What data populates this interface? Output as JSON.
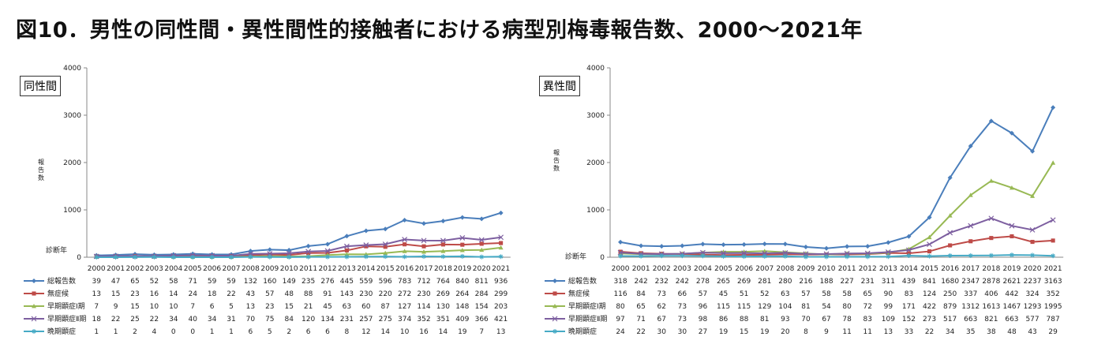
{
  "page_title": "図10．男性の同性間・異性間性的接触者における病型別梅毒報告数、2000〜2021年",
  "chart_data": [
    {
      "type": "line",
      "panel_label": "同性間",
      "ylabel": "報告数",
      "xlabel": "診断年",
      "ylim": [
        0,
        4000
      ],
      "yticks": [
        0,
        1000,
        2000,
        3000,
        4000
      ],
      "categories": [
        "2000",
        "2001",
        "2002",
        "2003",
        "2004",
        "2005",
        "2006",
        "2007",
        "2008",
        "2009",
        "2010",
        "2011",
        "2012",
        "2013",
        "2014",
        "2015",
        "2016",
        "2017",
        "2018",
        "2019",
        "2020",
        "2021"
      ],
      "series": [
        {
          "name": "総報告数",
          "color": "#4A7EBB",
          "marker": "diamond",
          "values": [
            39,
            47,
            65,
            52,
            58,
            71,
            59,
            59,
            132,
            160,
            149,
            235,
            276,
            445,
            559,
            596,
            783,
            712,
            764,
            840,
            811,
            936
          ]
        },
        {
          "name": "無症候",
          "color": "#BE4B48",
          "marker": "square",
          "values": [
            13,
            15,
            23,
            16,
            14,
            24,
            18,
            22,
            43,
            57,
            48,
            88,
            91,
            143,
            230,
            220,
            272,
            230,
            269,
            264,
            284,
            299
          ]
        },
        {
          "name": "早期顕症Ⅰ期",
          "color": "#98B954",
          "marker": "triangle",
          "values": [
            7,
            9,
            15,
            10,
            10,
            7,
            6,
            5,
            13,
            23,
            15,
            21,
            45,
            63,
            60,
            87,
            127,
            114,
            130,
            148,
            154,
            203
          ]
        },
        {
          "name": "早期顕症Ⅱ期",
          "color": "#7D5FA0",
          "marker": "x",
          "values": [
            18,
            22,
            25,
            22,
            34,
            40,
            34,
            31,
            70,
            75,
            84,
            120,
            134,
            231,
            257,
            275,
            374,
            352,
            351,
            409,
            366,
            421
          ]
        },
        {
          "name": "晩期顕症",
          "color": "#46AAC5",
          "marker": "star",
          "values": [
            1,
            1,
            2,
            4,
            0,
            0,
            1,
            1,
            6,
            5,
            2,
            6,
            6,
            8,
            12,
            14,
            10,
            16,
            14,
            19,
            7,
            13
          ]
        }
      ]
    },
    {
      "type": "line",
      "panel_label": "異性間",
      "ylabel": "報告数",
      "xlabel": "診断年",
      "ylim": [
        0,
        4000
      ],
      "yticks": [
        0,
        1000,
        2000,
        3000,
        4000
      ],
      "categories": [
        "2000",
        "2001",
        "2002",
        "2003",
        "2004",
        "2005",
        "2006",
        "2007",
        "2008",
        "2009",
        "2010",
        "2011",
        "2012",
        "2013",
        "2014",
        "2015",
        "2016",
        "2017",
        "2018",
        "2019",
        "2020",
        "2021"
      ],
      "series": [
        {
          "name": "総報告数",
          "color": "#4A7EBB",
          "marker": "diamond",
          "values": [
            318,
            242,
            232,
            242,
            278,
            265,
            269,
            281,
            280,
            216,
            188,
            227,
            231,
            311,
            439,
            841,
            1680,
            2347,
            2878,
            2621,
            2237,
            3163
          ]
        },
        {
          "name": "無症候",
          "color": "#BE4B48",
          "marker": "square",
          "values": [
            116,
            84,
            73,
            66,
            57,
            45,
            51,
            52,
            63,
            57,
            58,
            58,
            65,
            90,
            83,
            124,
            250,
            337,
            406,
            442,
            324,
            352
          ]
        },
        {
          "name": "早期顕症Ⅰ期",
          "color": "#98B954",
          "marker": "triangle",
          "values": [
            80,
            65,
            62,
            73,
            96,
            115,
            115,
            129,
            104,
            81,
            54,
            80,
            72,
            99,
            171,
            422,
            879,
            1312,
            1613,
            1467,
            1293,
            1995
          ]
        },
        {
          "name": "早期顕症Ⅱ期",
          "color": "#7D5FA0",
          "marker": "x",
          "values": [
            97,
            71,
            67,
            73,
            98,
            86,
            88,
            81,
            93,
            70,
            67,
            78,
            83,
            109,
            152,
            273,
            517,
            663,
            821,
            663,
            577,
            787
          ]
        },
        {
          "name": "晩期顕症",
          "color": "#46AAC5",
          "marker": "star",
          "values": [
            24,
            22,
            30,
            30,
            27,
            19,
            15,
            19,
            20,
            8,
            9,
            11,
            11,
            13,
            33,
            22,
            34,
            35,
            38,
            48,
            43,
            29
          ]
        }
      ]
    }
  ]
}
